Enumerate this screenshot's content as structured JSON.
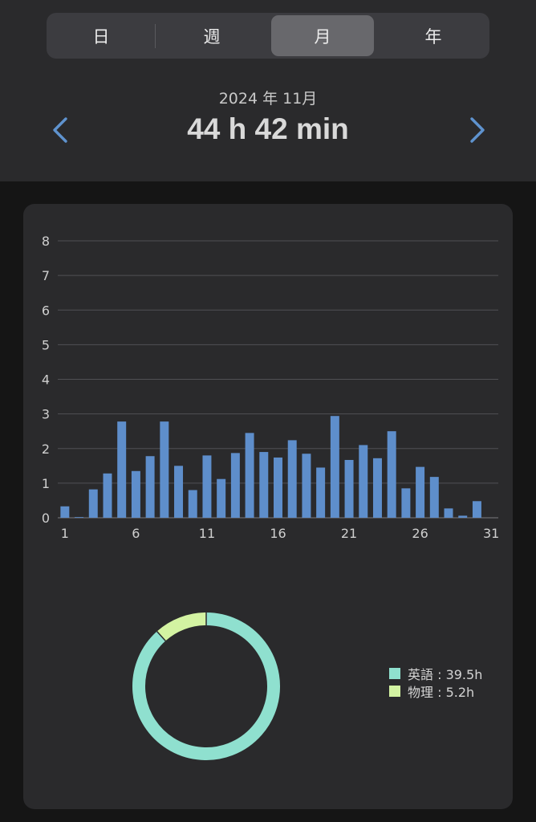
{
  "segmented_control": {
    "items": [
      "日",
      "週",
      "月",
      "年"
    ],
    "selected": "月"
  },
  "summary": {
    "period_label": "2024 年 11月",
    "total_time": "44 h 42 min"
  },
  "icons": {
    "previous": "chevron-left-icon",
    "next": "chevron-right-icon"
  },
  "colors": {
    "bar": "#5e8ecb",
    "nav_arrow": "#5f93cf",
    "english": "#8fe0cf",
    "physics": "#d3f3a2"
  },
  "chart_data": [
    {
      "type": "bar",
      "x": [
        1,
        2,
        3,
        4,
        5,
        6,
        7,
        8,
        9,
        10,
        11,
        12,
        13,
        14,
        15,
        16,
        17,
        18,
        19,
        20,
        21,
        22,
        23,
        24,
        25,
        26,
        27,
        28,
        29,
        30,
        31
      ],
      "values": [
        0.33,
        0.02,
        0.82,
        1.28,
        2.78,
        1.35,
        1.78,
        2.78,
        1.5,
        0.8,
        1.8,
        1.12,
        1.87,
        2.45,
        1.9,
        1.74,
        2.24,
        1.85,
        1.45,
        2.94,
        1.67,
        2.1,
        1.72,
        2.5,
        0.85,
        1.47,
        1.18,
        0.27,
        0.06,
        0.48,
        0
      ],
      "y_ticks": [
        0,
        1,
        2,
        3,
        4,
        5,
        6,
        7,
        8
      ],
      "x_ticks": [
        1,
        6,
        11,
        16,
        21,
        26,
        31
      ],
      "ylim": [
        0,
        8
      ],
      "grid": true
    },
    {
      "type": "pie",
      "style": "donut",
      "slices": [
        {
          "label": "英語",
          "value": 39.5,
          "legend": "英語 : 39.5h"
        },
        {
          "label": "物理",
          "value": 5.2,
          "legend": "物理 : 5.2h"
        }
      ],
      "legend_position": "right"
    }
  ]
}
